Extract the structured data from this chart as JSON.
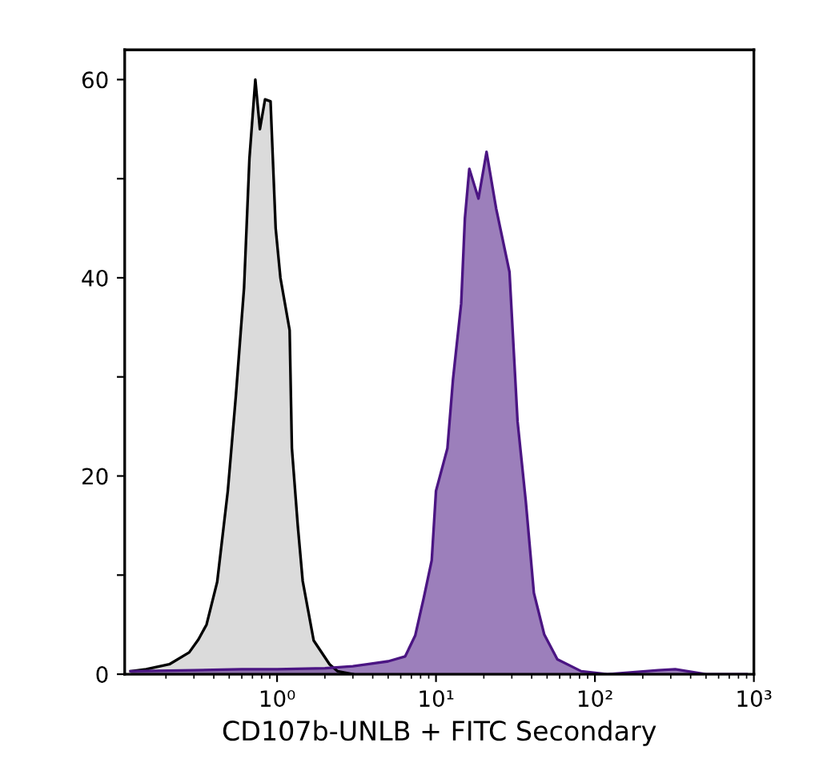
{
  "chart_data": {
    "type": "area",
    "xlabel": "CD107b-UNLB + FITC Secondary",
    "log": "x",
    "xlim": [
      0.11,
      1000
    ],
    "xticks": [
      {
        "value": 1,
        "label": "10⁰"
      },
      {
        "value": 10,
        "label": "10¹"
      },
      {
        "value": 100,
        "label": "10²"
      },
      {
        "value": 1000,
        "label": "10³"
      }
    ],
    "ylim": [
      0,
      63
    ],
    "yticks": [
      0,
      {
        "value": 10,
        "label": null
      },
      20,
      {
        "value": 30,
        "label": null
      },
      40,
      {
        "value": 50,
        "label": null
      },
      60
    ],
    "grid": false,
    "series": [
      {
        "color": "#000000",
        "x": [
          0.12,
          0.15,
          0.21,
          0.28,
          0.32,
          0.36,
          0.42,
          0.49,
          0.55,
          0.62,
          0.67,
          0.73,
          0.78,
          0.84,
          0.91,
          0.98,
          1.05,
          1.2,
          1.24,
          1.35,
          1.45,
          1.7,
          2.14,
          2.4,
          3.0
        ],
        "values": [
          0.3,
          0.5,
          1,
          2.2,
          3.5,
          5,
          9.3,
          18.5,
          28,
          39,
          52,
          60,
          55,
          58,
          57.8,
          45,
          40,
          34.7,
          22.8,
          15,
          9.4,
          3.4,
          1,
          0.3,
          0
        ]
      },
      {
        "color": "#4b1583",
        "x": [
          0.12,
          0.3,
          0.6,
          1.0,
          2.0,
          3.0,
          3.7,
          5.0,
          6.4,
          7.4,
          8.4,
          9.4,
          10,
          11.8,
          12.8,
          14.4,
          15.2,
          16.2,
          18.5,
          20.8,
          23.9,
          29,
          32.6,
          36.7,
          41.3,
          48,
          58,
          82,
          120,
          250,
          320,
          500,
          900
        ],
        "values": [
          0.3,
          0.4,
          0.5,
          0.5,
          0.6,
          0.8,
          1,
          1.3,
          1.8,
          3.9,
          7.8,
          11.5,
          18.5,
          22.8,
          29.8,
          37.4,
          46,
          51,
          48,
          52.7,
          47,
          40.6,
          25.5,
          17.5,
          8.2,
          4,
          1.5,
          0.3,
          0,
          0.4,
          0.5,
          0,
          0
        ]
      }
    ]
  }
}
